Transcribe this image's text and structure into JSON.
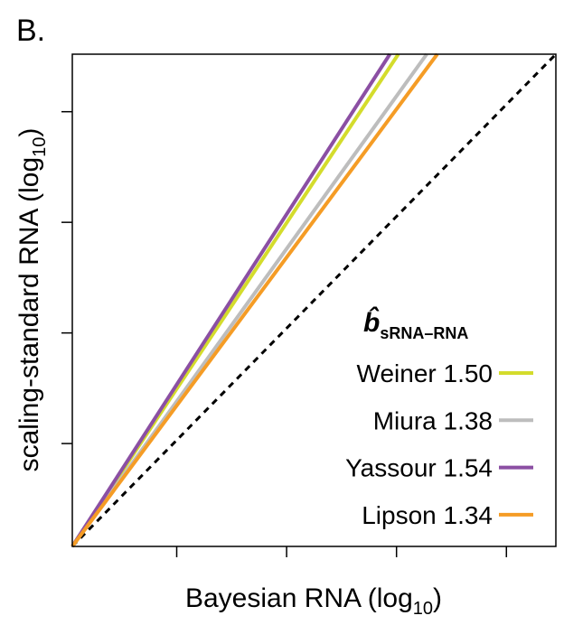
{
  "chart_data": {
    "type": "line",
    "panel_label": "B.",
    "x_label": "Bayesian RNA (log",
    "x_label_subscript": "10",
    "x_label_end": ")",
    "y_label": "scaling-standard RNA (log",
    "y_label_subscript": "10",
    "y_label_end": ")",
    "legend_title": "b̂",
    "legend_title_subscript": "sRNA–RNA",
    "xlim": [
      0,
      4.4
    ],
    "xticks": [
      0.95,
      1.95,
      2.95,
      3.95
    ],
    "ylim": [
      0,
      4.45
    ],
    "yticks": [
      0.93,
      1.93,
      2.93,
      3.93
    ],
    "reference_line": "dashed",
    "series": [
      {
        "name": "Weiner",
        "color": "#d4dc2c",
        "value": 1.5,
        "value_label": "1.50"
      },
      {
        "name": "Miura",
        "color": "#bdbdbd",
        "value": 1.38,
        "value_label": "1.38"
      },
      {
        "name": "Yassour",
        "color": "#8b4fa3",
        "value": 1.54,
        "value_label": "1.54"
      },
      {
        "name": "Lipson",
        "color": "#f59c25",
        "value": 1.34,
        "value_label": "1.34"
      }
    ]
  }
}
